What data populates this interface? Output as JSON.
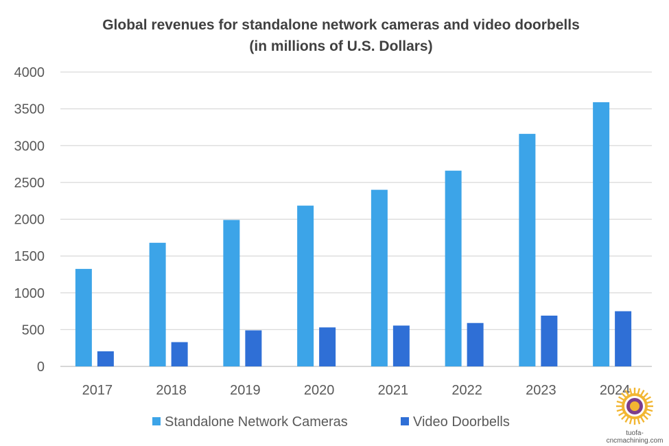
{
  "chart_data": {
    "type": "bar",
    "title": "Global revenues for standalone network cameras and video doorbells",
    "subtitle": "(in millions of U.S. Dollars)",
    "xlabel": "",
    "ylabel": "",
    "categories": [
      "2017",
      "2018",
      "2019",
      "2020",
      "2021",
      "2022",
      "2023",
      "2024"
    ],
    "series": [
      {
        "name": "Standalone Network Cameras",
        "color": "#3ca4e8",
        "values": [
          1325,
          1680,
          1990,
          2185,
          2400,
          2660,
          3160,
          3590
        ]
      },
      {
        "name": "Video Doorbells",
        "color": "#2f6fd6",
        "values": [
          205,
          330,
          490,
          530,
          555,
          590,
          690,
          750
        ]
      }
    ],
    "ylim": [
      0,
      4000
    ],
    "yticks": [
      "0",
      "500",
      "1000",
      "1500",
      "2000",
      "2500",
      "3000",
      "3500",
      "4000"
    ],
    "grid": true,
    "legend_position": "bottom"
  },
  "watermark": {
    "text": "tuofa-cncmachining.com",
    "icon": "sun-logo-icon"
  }
}
